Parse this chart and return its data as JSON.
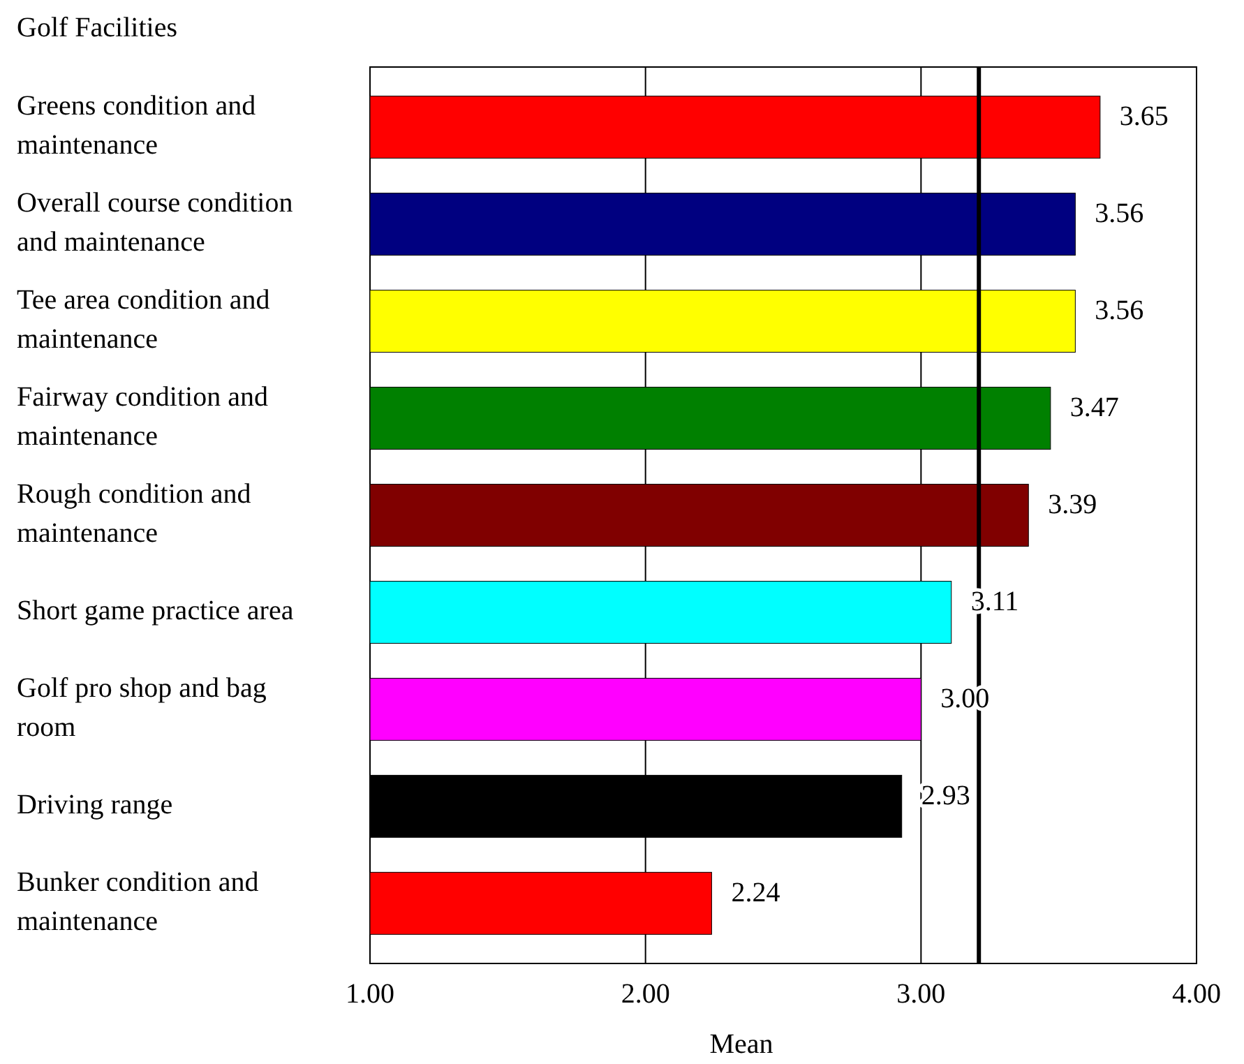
{
  "chart_data": {
    "type": "bar",
    "orientation": "horizontal",
    "title": "Golf Facilities",
    "xlabel": "Mean",
    "categories": [
      "Greens condition and maintenance",
      "Overall course condition and maintenance",
      "Tee area condition and maintenance",
      "Fairway condition and maintenance",
      "Rough condition and maintenance",
      "Short game practice area",
      "Golf pro shop and bag room",
      "Driving range",
      "Bunker condition and maintenance"
    ],
    "values": [
      3.65,
      3.56,
      3.56,
      3.47,
      3.39,
      3.11,
      3.0,
      2.93,
      2.24
    ],
    "colors": [
      "#ff0000",
      "#000080",
      "#ffff00",
      "#008000",
      "#800000",
      "#00ffff",
      "#ff00ff",
      "#000000",
      "#ff0000"
    ],
    "xlim": [
      1,
      4
    ],
    "xticks": [
      {
        "value": 1,
        "label": "1.00"
      },
      {
        "value": 2,
        "label": "2.00"
      },
      {
        "value": 3,
        "label": "3.00"
      },
      {
        "value": 4,
        "label": "4.00"
      }
    ],
    "grid": "x",
    "value_labels": [
      "3.65",
      "3.56",
      "3.56",
      "3.47",
      "3.39",
      "3.11",
      "3.00",
      "2.93",
      "2.24"
    ],
    "ref_lines": [
      {
        "axis": "x",
        "value": 3.21,
        "color": "#000000"
      }
    ]
  }
}
